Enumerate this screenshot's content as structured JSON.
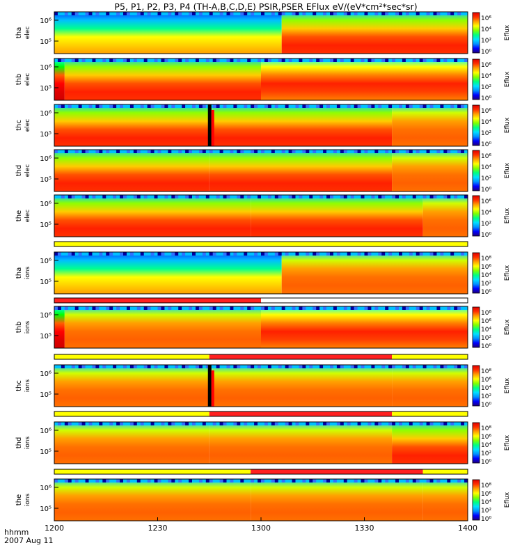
{
  "title": "P5, P1, P2, P3, P4 (TH-A,B,C,D,E) PSIR,PSER EFlux eV/(eV*cm²*sec*sr)",
  "time_axis": {
    "label_line1": "hhmm",
    "label_line2": "2007 Aug 11",
    "start_min": 720,
    "end_min": 840,
    "tick_values_min": [
      720,
      750,
      780,
      810,
      840
    ],
    "tick_labels": [
      "1200",
      "1230",
      "1300",
      "1330",
      "1400"
    ]
  },
  "colorbar": {
    "label": "Eflux",
    "exponent_labels": [
      "10⁶",
      "10⁴",
      "10²",
      "10⁰"
    ],
    "exponent_labels_ion": [
      "10⁸",
      "10⁶",
      "10⁴",
      "10²",
      "10⁰"
    ],
    "colors": [
      "#20007a",
      "#0000ff",
      "#0090ff",
      "#00e0ff",
      "#00ff80",
      "#80ff00",
      "#ffff00",
      "#ffa000",
      "#ff3000",
      "#e00000"
    ]
  },
  "chart_data": {
    "type": "heatmap",
    "panels": [
      {
        "probe": "tha",
        "species": "elec",
        "ylabels": [
          "10⁶",
          "10⁵"
        ],
        "segments": [
          {
            "start": 720,
            "end": 786,
            "level": 0
          },
          {
            "start": 786,
            "end": 840,
            "level": 1
          }
        ],
        "spike": null
      },
      {
        "probe": "thb",
        "species": "elec",
        "ylabels": [
          "10⁶",
          "10⁵"
        ],
        "segments": [
          {
            "start": 720,
            "end": 723,
            "level": 2
          },
          {
            "start": 723,
            "end": 780,
            "level": 1
          },
          {
            "start": 780,
            "end": 840,
            "level": 3
          }
        ],
        "spike": null
      },
      {
        "probe": "thc",
        "species": "elec",
        "ylabels": [
          "10⁶",
          "10⁵"
        ],
        "segments": [
          {
            "start": 720,
            "end": 766,
            "level": 1
          },
          {
            "start": 766,
            "end": 818,
            "level": 1
          },
          {
            "start": 818,
            "end": 840,
            "level": 4
          }
        ],
        "spike": 765
      },
      {
        "probe": "thd",
        "species": "elec",
        "ylabels": [
          "10⁶",
          "10⁵"
        ],
        "segments": [
          {
            "start": 720,
            "end": 765,
            "level": 1
          },
          {
            "start": 765,
            "end": 818,
            "level": 1
          },
          {
            "start": 818,
            "end": 840,
            "level": 4
          }
        ],
        "spike": null
      },
      {
        "probe": "the",
        "species": "elec",
        "ylabels": [
          "10⁶",
          "10⁵"
        ],
        "segments": [
          {
            "start": 720,
            "end": 777,
            "level": 1
          },
          {
            "start": 777,
            "end": 827,
            "level": 1
          },
          {
            "start": 827,
            "end": 840,
            "level": 4
          }
        ],
        "spike": null
      },
      {
        "probe": "tha",
        "species": "ions",
        "ylabels": [
          "10⁶",
          "10⁵"
        ],
        "segments": [
          {
            "start": 720,
            "end": 786,
            "level": 0
          },
          {
            "start": 786,
            "end": 840,
            "level": 4
          }
        ],
        "spike": null
      },
      {
        "probe": "thb",
        "species": "ions",
        "ylabels": [
          "10⁶",
          "10⁵"
        ],
        "segments": [
          {
            "start": 720,
            "end": 723,
            "level": 2
          },
          {
            "start": 723,
            "end": 780,
            "level": 4
          },
          {
            "start": 780,
            "end": 840,
            "level": 3
          }
        ],
        "spike": null
      },
      {
        "probe": "thc",
        "species": "ions",
        "ylabels": [
          "10⁶",
          "10⁵"
        ],
        "segments": [
          {
            "start": 720,
            "end": 766,
            "level": 4
          },
          {
            "start": 766,
            "end": 818,
            "level": 4
          },
          {
            "start": 818,
            "end": 840,
            "level": 4
          }
        ],
        "spike": 765
      },
      {
        "probe": "thd",
        "species": "ions",
        "ylabels": [
          "10⁶",
          "10⁵"
        ],
        "segments": [
          {
            "start": 720,
            "end": 765,
            "level": 4
          },
          {
            "start": 765,
            "end": 818,
            "level": 4
          },
          {
            "start": 818,
            "end": 840,
            "level": 1
          }
        ],
        "spike": null
      },
      {
        "probe": "the",
        "species": "ions",
        "ylabels": [
          "10⁶",
          "10⁵"
        ],
        "segments": [
          {
            "start": 720,
            "end": 777,
            "level": 4
          },
          {
            "start": 777,
            "end": 827,
            "level": 4
          },
          {
            "start": 827,
            "end": 840,
            "level": 4
          }
        ],
        "spike": null
      }
    ],
    "mode_bars": [
      {
        "segments": [
          {
            "start": 720,
            "end": 840,
            "color": "#ffff00"
          }
        ]
      },
      {
        "segments": [
          {
            "start": 720,
            "end": 780,
            "color": "#ff2020"
          },
          {
            "start": 780,
            "end": 840,
            "color": "#ffffff"
          }
        ]
      },
      {
        "segments": [
          {
            "start": 720,
            "end": 765,
            "color": "#ffff00"
          },
          {
            "start": 765,
            "end": 818,
            "color": "#ff2020"
          },
          {
            "start": 818,
            "end": 840,
            "color": "#ffff00"
          }
        ]
      },
      {
        "segments": [
          {
            "start": 720,
            "end": 765,
            "color": "#ffff00"
          },
          {
            "start": 765,
            "end": 818,
            "color": "#ff2020"
          },
          {
            "start": 818,
            "end": 840,
            "color": "#ffff00"
          }
        ]
      },
      {
        "segments": [
          {
            "start": 720,
            "end": 777,
            "color": "#ffff00"
          },
          {
            "start": 777,
            "end": 827,
            "color": "#ff2020"
          },
          {
            "start": 827,
            "end": 840,
            "color": "#ffff00"
          }
        ]
      }
    ]
  }
}
